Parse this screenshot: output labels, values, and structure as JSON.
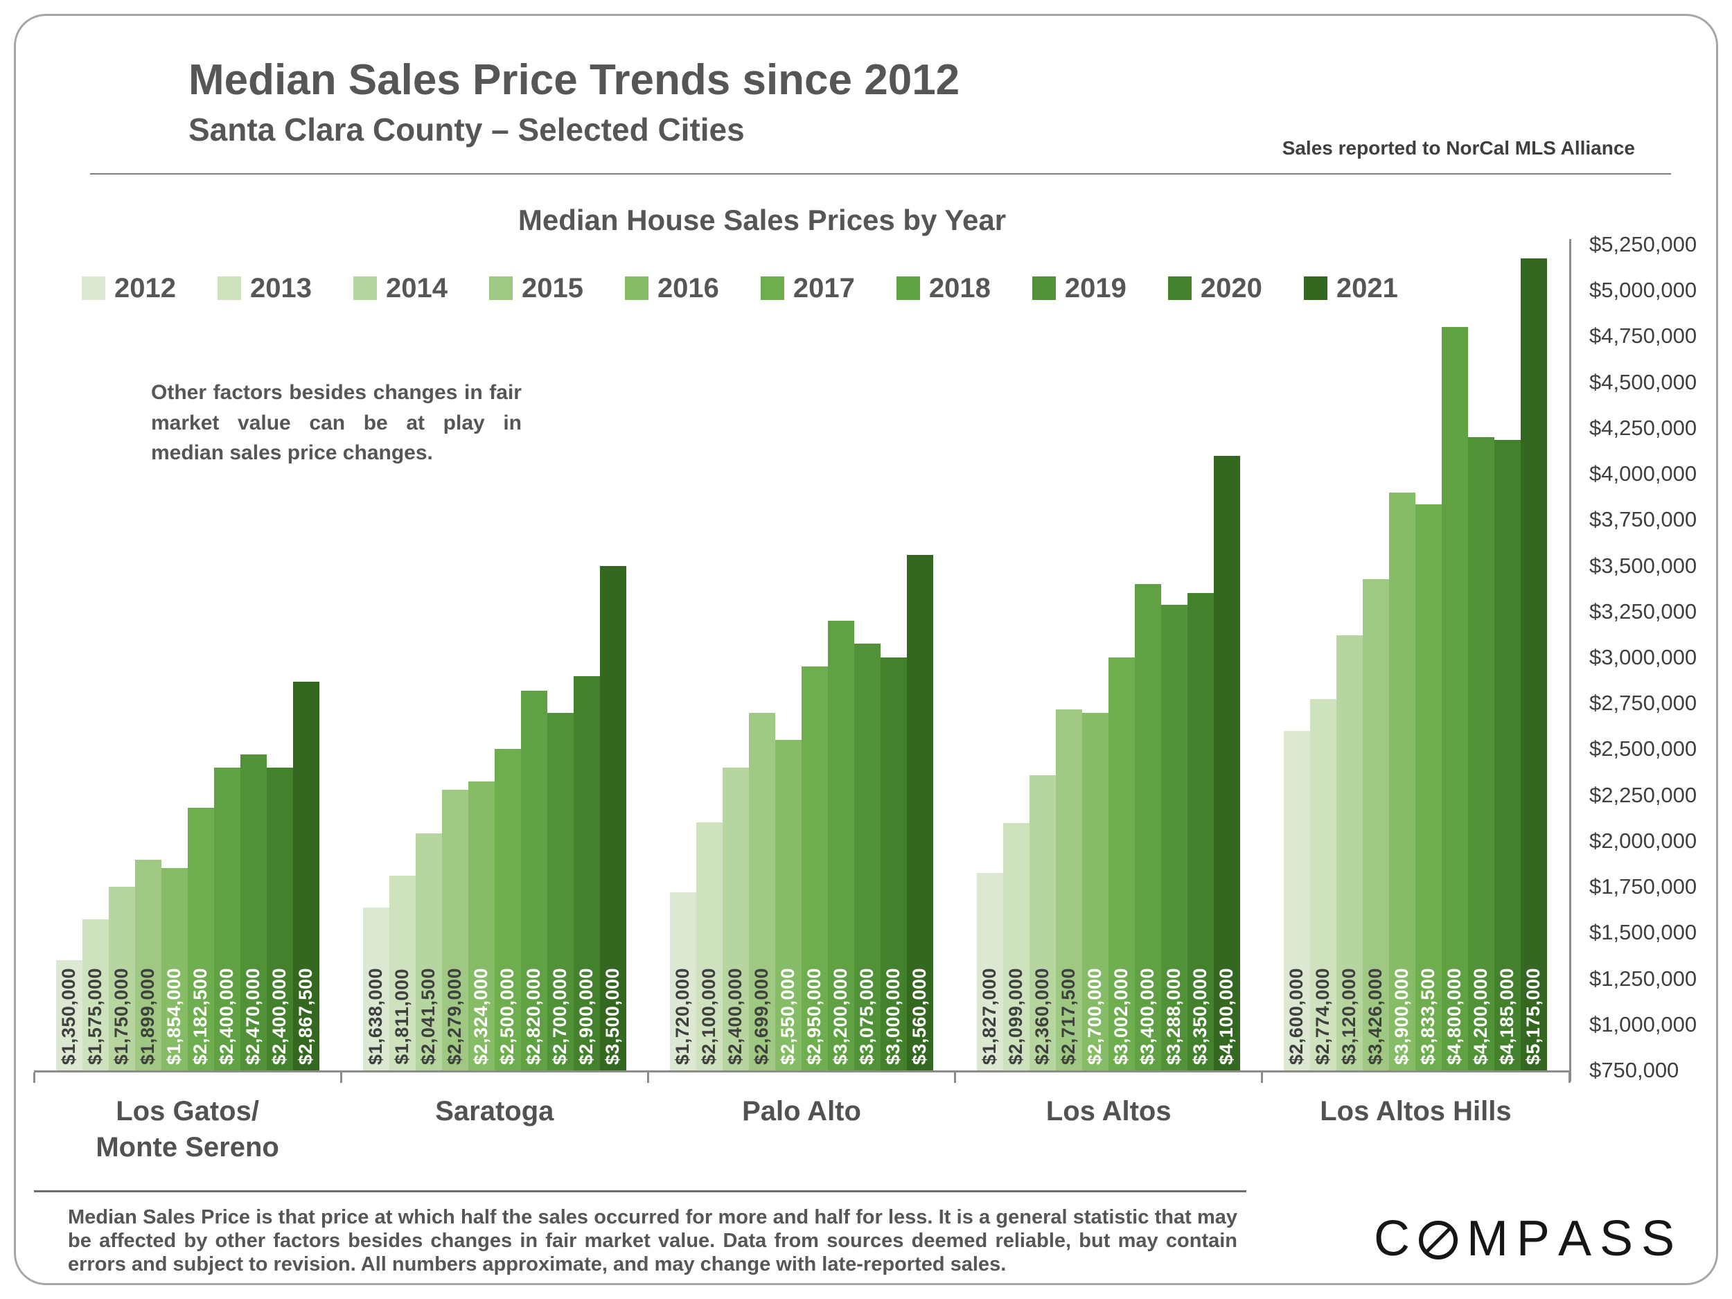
{
  "header": {
    "title": "Median Sales Price Trends since 2012",
    "subtitle": "Santa Clara County – Selected Cities",
    "source_note": "Sales reported to NorCal MLS Alliance"
  },
  "chart": {
    "annotation": "Other factors besides changes in fair market value can be at play in median sales price changes.",
    "bar_label_dark_count": 4,
    "bar_label_colors": {
      "dark": "#3f3f3f",
      "light": "#ffffff"
    }
  },
  "chart_data": {
    "type": "bar",
    "title": "Median House Sales Prices by Year",
    "years": [
      "2012",
      "2013",
      "2014",
      "2015",
      "2016",
      "2017",
      "2018",
      "2019",
      "2020",
      "2021"
    ],
    "year_colors": [
      "#dce8d1",
      "#cee2bd",
      "#b7d69f",
      "#9fc983",
      "#87bc66",
      "#6fae4e",
      "#5fa143",
      "#519239",
      "#43812c",
      "#34671f"
    ],
    "ylim": [
      750000,
      5250000
    ],
    "y_tick_step": 250000,
    "y_tick_labels": [
      "$750,000",
      "$1,000,000",
      "$1,250,000",
      "$1,500,000",
      "$1,750,000",
      "$2,000,000",
      "$2,250,000",
      "$2,500,000",
      "$2,750,000",
      "$3,000,000",
      "$3,250,000",
      "$3,500,000",
      "$3,750,000",
      "$4,000,000",
      "$4,250,000",
      "$4,500,000",
      "$4,750,000",
      "$5,000,000",
      "$5,250,000"
    ],
    "legend_position": "top-left",
    "grid": false,
    "groups": [
      {
        "city_lines": [
          "Los Gatos/",
          "Monte Sereno"
        ],
        "values": [
          1350000,
          1575000,
          1750000,
          1899000,
          1854000,
          2182500,
          2400000,
          2470000,
          2400000,
          2867500
        ],
        "labels": [
          "$1,350,000",
          "$1,575,000",
          "$1,750,000",
          "$1,899,000",
          "$1,854,000",
          "$2,182,500",
          "$2,400,000",
          "$2,470,000",
          "$2,400,000",
          "$2,867,500"
        ]
      },
      {
        "city_lines": [
          "Saratoga"
        ],
        "values": [
          1638000,
          1811000,
          2041500,
          2279000,
          2324000,
          2500000,
          2820000,
          2700000,
          2900000,
          3500000
        ],
        "labels": [
          "$1,638,000",
          "$1,811,000",
          "$2,041,500",
          "$2,279,000",
          "$2,324,000",
          "$2,500,000",
          "$2,820,000",
          "$2,700,000",
          "$2,900,000",
          "$3,500,000"
        ]
      },
      {
        "city_lines": [
          "Palo Alto"
        ],
        "values": [
          1720000,
          2100000,
          2400000,
          2699000,
          2550000,
          2950000,
          3200000,
          3075000,
          3000000,
          3560000
        ],
        "labels": [
          "$1,720,000",
          "$2,100,000",
          "$2,400,000",
          "$2,699,000",
          "$2,550,000",
          "$2,950,000",
          "$3,200,000",
          "$3,075,000",
          "$3,000,000",
          "$3,560,000"
        ]
      },
      {
        "city_lines": [
          "Los Altos"
        ],
        "values": [
          1827000,
          2099000,
          2360000,
          2717500,
          2700000,
          3002000,
          3400000,
          3288000,
          3350000,
          4100000
        ],
        "labels": [
          "$1,827,000",
          "$2,099,000",
          "$2,360,000",
          "$2,717,500",
          "$2,700,000",
          "$3,002,000",
          "$3,400,000",
          "$3,288,000",
          "$3,350,000",
          "$4,100,000"
        ]
      },
      {
        "city_lines": [
          "Los Altos Hills"
        ],
        "values": [
          2600000,
          2774000,
          3120000,
          3426000,
          3900000,
          3833500,
          4800000,
          4200000,
          4185000,
          5175000
        ],
        "labels": [
          "$2,600,000",
          "$2,774,000",
          "$3,120,000",
          "$3,426,000",
          "$3,900,000",
          "$3,833,500",
          "$4,800,000",
          "$4,200,000",
          "$4,185,000",
          "$5,175,000"
        ]
      }
    ]
  },
  "footer": {
    "disclaimer": "Median Sales Price is that price at which half the sales occurred for more and half for less. It is a general statistic that may be affected by other factors besides changes in fair market value. Data from sources deemed reliable, but may contain errors and subject to revision.  All numbers approximate, and may change with late-reported sales.",
    "logo_text": "COMPASS"
  }
}
